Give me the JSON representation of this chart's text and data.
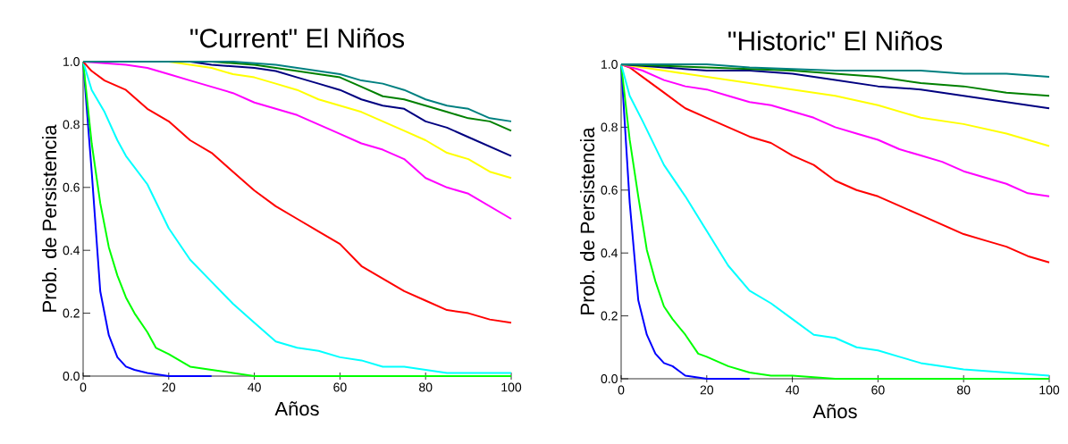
{
  "chart_data": [
    {
      "type": "line",
      "title": "\"Current\" El Niños",
      "xlabel": "Años",
      "ylabel": "Prob. de Persistencia",
      "xlim": [
        0,
        100
      ],
      "ylim": [
        0,
        1
      ],
      "xticks": [
        0,
        20,
        40,
        60,
        80,
        100
      ],
      "yticks": [
        {
          "value": 0,
          "label": "0.0"
        },
        {
          "value": 0.2,
          "label": "0.2"
        },
        {
          "value": 0.4,
          "label": "0.4"
        },
        {
          "value": 0.6,
          "label": "0.6"
        },
        {
          "value": 0.8,
          "label": "0.8"
        },
        {
          "value": 1,
          "label": "1.0"
        }
      ],
      "grid": false,
      "series": [
        {
          "color": "#0000ff",
          "x": [
            0,
            2,
            4,
            6,
            8,
            10,
            12,
            15,
            20,
            30
          ],
          "values": [
            1,
            0.65,
            0.27,
            0.13,
            0.06,
            0.03,
            0.02,
            0.01,
            0,
            0
          ]
        },
        {
          "color": "#00ff00",
          "x": [
            0,
            2,
            4,
            6,
            8,
            10,
            12,
            15,
            17,
            20,
            25,
            30,
            35,
            40,
            50,
            100
          ],
          "values": [
            1,
            0.74,
            0.55,
            0.41,
            0.32,
            0.25,
            0.2,
            0.14,
            0.09,
            0.07,
            0.03,
            0.02,
            0.01,
            0,
            0,
            0
          ]
        },
        {
          "color": "#00ffff",
          "x": [
            0,
            2,
            5,
            8,
            10,
            15,
            20,
            25,
            30,
            35,
            40,
            45,
            50,
            55,
            60,
            65,
            70,
            75,
            80,
            85,
            90,
            100
          ],
          "values": [
            1,
            0.91,
            0.84,
            0.75,
            0.7,
            0.61,
            0.47,
            0.37,
            0.3,
            0.23,
            0.17,
            0.11,
            0.09,
            0.08,
            0.06,
            0.05,
            0.03,
            0.03,
            0.02,
            0.01,
            0.01,
            0.01
          ]
        },
        {
          "color": "#ff0000",
          "x": [
            0,
            2,
            5,
            10,
            15,
            20,
            25,
            30,
            35,
            40,
            45,
            50,
            55,
            60,
            65,
            70,
            75,
            80,
            85,
            90,
            95,
            100
          ],
          "values": [
            1,
            0.97,
            0.94,
            0.91,
            0.85,
            0.81,
            0.75,
            0.71,
            0.65,
            0.59,
            0.54,
            0.5,
            0.46,
            0.42,
            0.35,
            0.31,
            0.27,
            0.24,
            0.21,
            0.2,
            0.18,
            0.17
          ]
        },
        {
          "color": "#ff00ff",
          "x": [
            0,
            10,
            15,
            20,
            25,
            30,
            35,
            40,
            45,
            50,
            55,
            60,
            65,
            70,
            75,
            80,
            85,
            90,
            95,
            100
          ],
          "values": [
            1,
            0.99,
            0.98,
            0.96,
            0.94,
            0.92,
            0.9,
            0.87,
            0.85,
            0.83,
            0.8,
            0.77,
            0.74,
            0.72,
            0.69,
            0.63,
            0.6,
            0.58,
            0.54,
            0.5
          ]
        },
        {
          "color": "#ffff00",
          "x": [
            0,
            20,
            25,
            30,
            35,
            40,
            45,
            50,
            55,
            60,
            65,
            70,
            75,
            80,
            85,
            90,
            95,
            100
          ],
          "values": [
            1,
            1,
            0.99,
            0.98,
            0.96,
            0.95,
            0.93,
            0.91,
            0.88,
            0.86,
            0.84,
            0.81,
            0.78,
            0.75,
            0.71,
            0.69,
            0.65,
            0.63
          ]
        },
        {
          "color": "#000080",
          "x": [
            0,
            25,
            30,
            40,
            45,
            50,
            55,
            60,
            65,
            70,
            75,
            80,
            85,
            90,
            95,
            100
          ],
          "values": [
            1,
            1,
            0.99,
            0.98,
            0.97,
            0.95,
            0.93,
            0.91,
            0.88,
            0.86,
            0.85,
            0.81,
            0.79,
            0.76,
            0.73,
            0.7
          ]
        },
        {
          "color": "#008000",
          "x": [
            0,
            30,
            40,
            50,
            60,
            65,
            70,
            75,
            80,
            85,
            90,
            95,
            100
          ],
          "values": [
            1,
            1,
            0.99,
            0.97,
            0.95,
            0.92,
            0.89,
            0.88,
            0.86,
            0.84,
            0.82,
            0.81,
            0.78
          ]
        },
        {
          "color": "#008080",
          "x": [
            0,
            35,
            45,
            50,
            55,
            60,
            65,
            70,
            75,
            80,
            85,
            90,
            95,
            100
          ],
          "values": [
            1,
            1,
            0.99,
            0.98,
            0.97,
            0.96,
            0.94,
            0.93,
            0.91,
            0.88,
            0.86,
            0.85,
            0.82,
            0.81
          ]
        }
      ]
    },
    {
      "type": "line",
      "title": "\"Historic\" El Niños",
      "xlabel": "Años",
      "ylabel": "Prob. de Persistencia",
      "xlim": [
        0,
        100
      ],
      "ylim": [
        0,
        1
      ],
      "xticks": [
        0,
        20,
        40,
        60,
        80,
        100
      ],
      "yticks": [
        {
          "value": 0,
          "label": "0.0"
        },
        {
          "value": 0.2,
          "label": "0.2"
        },
        {
          "value": 0.4,
          "label": "0.4"
        },
        {
          "value": 0.6,
          "label": "0.6"
        },
        {
          "value": 0.8,
          "label": "0.8"
        },
        {
          "value": 1,
          "label": "1.0"
        }
      ],
      "grid": false,
      "series": [
        {
          "color": "#0000ff",
          "x": [
            0,
            2,
            4,
            6,
            8,
            10,
            12,
            15,
            20,
            30
          ],
          "values": [
            1,
            0.56,
            0.25,
            0.14,
            0.08,
            0.05,
            0.04,
            0.01,
            0,
            0
          ]
        },
        {
          "color": "#00ff00",
          "x": [
            0,
            2,
            4,
            6,
            8,
            10,
            12,
            15,
            18,
            20,
            25,
            30,
            35,
            40,
            50,
            60,
            100
          ],
          "values": [
            1,
            0.76,
            0.58,
            0.41,
            0.31,
            0.23,
            0.19,
            0.14,
            0.08,
            0.07,
            0.04,
            0.02,
            0.01,
            0.01,
            0,
            0,
            0
          ]
        },
        {
          "color": "#00ffff",
          "x": [
            0,
            2,
            5,
            10,
            15,
            20,
            25,
            30,
            35,
            40,
            45,
            50,
            55,
            60,
            65,
            70,
            75,
            80,
            90,
            100
          ],
          "values": [
            1,
            0.9,
            0.82,
            0.68,
            0.58,
            0.47,
            0.36,
            0.28,
            0.24,
            0.19,
            0.14,
            0.13,
            0.1,
            0.09,
            0.07,
            0.05,
            0.04,
            0.03,
            0.02,
            0.01
          ]
        },
        {
          "color": "#ff0000",
          "x": [
            0,
            2,
            5,
            8,
            10,
            15,
            20,
            25,
            30,
            35,
            40,
            45,
            50,
            55,
            60,
            65,
            70,
            75,
            80,
            85,
            90,
            95,
            100
          ],
          "values": [
            1,
            0.99,
            0.96,
            0.93,
            0.91,
            0.86,
            0.83,
            0.8,
            0.77,
            0.75,
            0.71,
            0.68,
            0.63,
            0.6,
            0.58,
            0.55,
            0.52,
            0.49,
            0.46,
            0.44,
            0.42,
            0.39,
            0.37
          ]
        },
        {
          "color": "#ff00ff",
          "x": [
            0,
            5,
            10,
            15,
            20,
            25,
            30,
            35,
            40,
            45,
            50,
            55,
            60,
            65,
            70,
            75,
            80,
            85,
            90,
            95,
            100
          ],
          "values": [
            1,
            0.98,
            0.95,
            0.93,
            0.92,
            0.9,
            0.88,
            0.87,
            0.85,
            0.83,
            0.8,
            0.78,
            0.76,
            0.73,
            0.71,
            0.69,
            0.66,
            0.64,
            0.62,
            0.59,
            0.58
          ]
        },
        {
          "color": "#ffff00",
          "x": [
            0,
            5,
            10,
            20,
            30,
            40,
            50,
            60,
            70,
            80,
            90,
            100
          ],
          "values": [
            1,
            0.99,
            0.98,
            0.96,
            0.94,
            0.92,
            0.9,
            0.87,
            0.83,
            0.81,
            0.78,
            0.74
          ]
        },
        {
          "color": "#000080",
          "x": [
            0,
            10,
            20,
            30,
            40,
            50,
            60,
            70,
            80,
            90,
            100
          ],
          "values": [
            1,
            0.99,
            0.98,
            0.98,
            0.97,
            0.95,
            0.93,
            0.92,
            0.9,
            0.88,
            0.86
          ]
        },
        {
          "color": "#008000",
          "x": [
            0,
            20,
            40,
            60,
            70,
            80,
            90,
            100
          ],
          "values": [
            1,
            0.99,
            0.98,
            0.96,
            0.94,
            0.93,
            0.91,
            0.9
          ]
        },
        {
          "color": "#008080",
          "x": [
            0,
            20,
            30,
            50,
            70,
            80,
            90,
            100
          ],
          "values": [
            1,
            1,
            0.99,
            0.98,
            0.98,
            0.97,
            0.97,
            0.96
          ]
        }
      ]
    }
  ]
}
